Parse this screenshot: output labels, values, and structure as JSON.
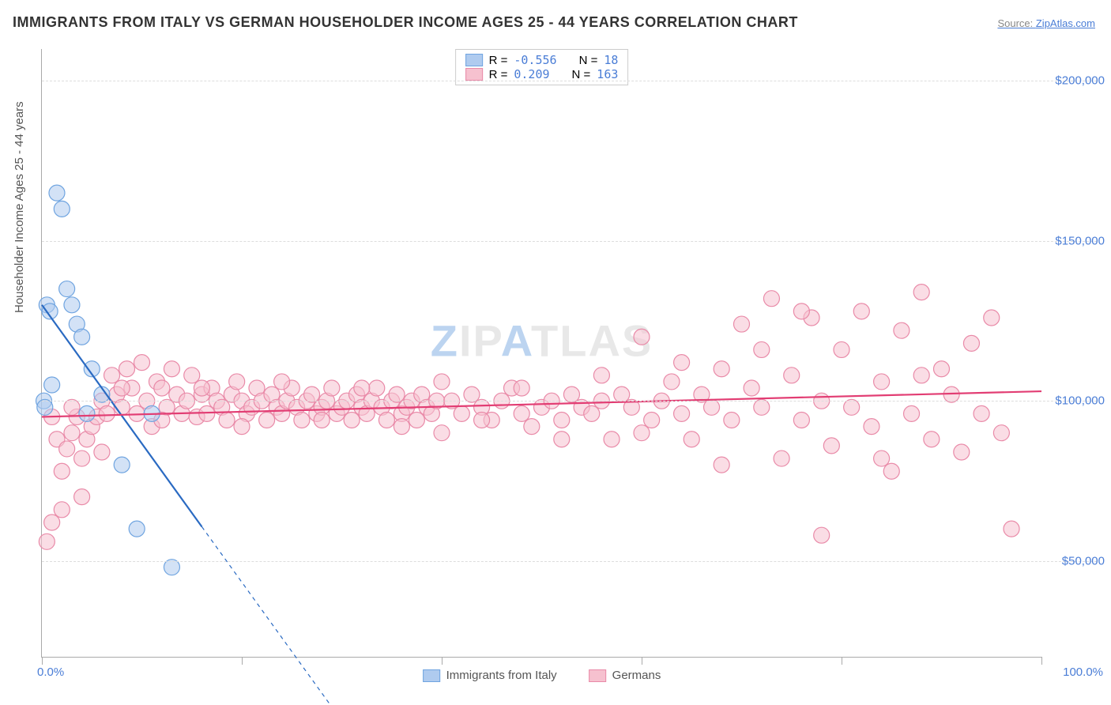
{
  "title": "IMMIGRANTS FROM ITALY VS GERMAN HOUSEHOLDER INCOME AGES 25 - 44 YEARS CORRELATION CHART",
  "source_label": "Source: ",
  "source": "ZipAtlas.com",
  "ylabel": "Householder Income Ages 25 - 44 years",
  "watermark": "ZIPATLAS",
  "chart": {
    "type": "scatter",
    "xlim": [
      0,
      100
    ],
    "ylim": [
      20000,
      210000
    ],
    "ytick_values": [
      50000,
      100000,
      150000,
      200000
    ],
    "ytick_labels": [
      "$50,000",
      "$100,000",
      "$150,000",
      "$200,000"
    ],
    "xtick_values": [
      0,
      20,
      40,
      60,
      80,
      100
    ],
    "x_corner_labels": [
      "0.0%",
      "100.0%"
    ],
    "grid_color": "#dddddd",
    "axis_color": "#aaaaaa",
    "background_color": "#ffffff"
  },
  "series": [
    {
      "name": "Immigrants from Italy",
      "fill": "#afcbef",
      "stroke": "#6fa4e0",
      "line_color": "#2a6ac2",
      "fill_opacity": 0.55,
      "marker_r": 10,
      "R_label": "R = ",
      "R": "-0.556",
      "N_label": "N = ",
      "N": "18",
      "trend": {
        "x1": 0,
        "y1": 130000,
        "x2": 30,
        "y2": 0,
        "solid_until_x": 16
      },
      "points": [
        [
          0.2,
          100000
        ],
        [
          0.3,
          98000
        ],
        [
          0.5,
          130000
        ],
        [
          0.8,
          128000
        ],
        [
          1.0,
          105000
        ],
        [
          1.5,
          165000
        ],
        [
          2.0,
          160000
        ],
        [
          2.5,
          135000
        ],
        [
          3.0,
          130000
        ],
        [
          3.5,
          124000
        ],
        [
          4.0,
          120000
        ],
        [
          4.5,
          96000
        ],
        [
          5.0,
          110000
        ],
        [
          6.0,
          102000
        ],
        [
          8.0,
          80000
        ],
        [
          9.5,
          60000
        ],
        [
          11.0,
          96000
        ],
        [
          13.0,
          48000
        ]
      ]
    },
    {
      "name": "Germans",
      "fill": "#f6c1cf",
      "stroke": "#e98aa8",
      "line_color": "#e23d73",
      "fill_opacity": 0.55,
      "marker_r": 10,
      "R_label": "R = ",
      "R": "0.209",
      "N_label": "N = ",
      "N": "163",
      "trend": {
        "x1": 0,
        "y1": 95000,
        "x2": 100,
        "y2": 103000,
        "solid_until_x": 100
      },
      "points": [
        [
          0.5,
          56000
        ],
        [
          1,
          62000
        ],
        [
          1.5,
          88000
        ],
        [
          2,
          78000
        ],
        [
          2.5,
          85000
        ],
        [
          3,
          90000
        ],
        [
          3.5,
          95000
        ],
        [
          4,
          82000
        ],
        [
          4.5,
          88000
        ],
        [
          5,
          92000
        ],
        [
          5.5,
          95000
        ],
        [
          6,
          100000
        ],
        [
          6.5,
          96000
        ],
        [
          7,
          108000
        ],
        [
          7.5,
          102000
        ],
        [
          8,
          98000
        ],
        [
          8.5,
          110000
        ],
        [
          9,
          104000
        ],
        [
          9.5,
          96000
        ],
        [
          10,
          112000
        ],
        [
          10.5,
          100000
        ],
        [
          11,
          92000
        ],
        [
          11.5,
          106000
        ],
        [
          12,
          104000
        ],
        [
          12.5,
          98000
        ],
        [
          13,
          110000
        ],
        [
          13.5,
          102000
        ],
        [
          14,
          96000
        ],
        [
          14.5,
          100000
        ],
        [
          15,
          108000
        ],
        [
          15.5,
          95000
        ],
        [
          16,
          102000
        ],
        [
          16.5,
          96000
        ],
        [
          17,
          104000
        ],
        [
          17.5,
          100000
        ],
        [
          18,
          98000
        ],
        [
          18.5,
          94000
        ],
        [
          19,
          102000
        ],
        [
          19.5,
          106000
        ],
        [
          20,
          100000
        ],
        [
          20.5,
          96000
        ],
        [
          21,
          98000
        ],
        [
          21.5,
          104000
        ],
        [
          22,
          100000
        ],
        [
          22.5,
          94000
        ],
        [
          23,
          102000
        ],
        [
          23.5,
          98000
        ],
        [
          24,
          96000
        ],
        [
          24.5,
          100000
        ],
        [
          25,
          104000
        ],
        [
          25.5,
          98000
        ],
        [
          26,
          94000
        ],
        [
          26.5,
          100000
        ],
        [
          27,
          102000
        ],
        [
          27.5,
          96000
        ],
        [
          28,
          98000
        ],
        [
          28.5,
          100000
        ],
        [
          29,
          104000
        ],
        [
          29.5,
          96000
        ],
        [
          30,
          98000
        ],
        [
          30.5,
          100000
        ],
        [
          31,
          94000
        ],
        [
          31.5,
          102000
        ],
        [
          32,
          98000
        ],
        [
          32.5,
          96000
        ],
        [
          33,
          100000
        ],
        [
          33.5,
          104000
        ],
        [
          34,
          98000
        ],
        [
          34.5,
          94000
        ],
        [
          35,
          100000
        ],
        [
          35.5,
          102000
        ],
        [
          36,
          96000
        ],
        [
          36.5,
          98000
        ],
        [
          37,
          100000
        ],
        [
          37.5,
          94000
        ],
        [
          38,
          102000
        ],
        [
          38.5,
          98000
        ],
        [
          39,
          96000
        ],
        [
          39.5,
          100000
        ],
        [
          40,
          90000
        ],
        [
          41,
          100000
        ],
        [
          42,
          96000
        ],
        [
          43,
          102000
        ],
        [
          44,
          98000
        ],
        [
          45,
          94000
        ],
        [
          46,
          100000
        ],
        [
          47,
          104000
        ],
        [
          48,
          96000
        ],
        [
          49,
          92000
        ],
        [
          50,
          98000
        ],
        [
          51,
          100000
        ],
        [
          52,
          94000
        ],
        [
          53,
          102000
        ],
        [
          54,
          98000
        ],
        [
          55,
          96000
        ],
        [
          56,
          100000
        ],
        [
          57,
          88000
        ],
        [
          58,
          102000
        ],
        [
          59,
          98000
        ],
        [
          60,
          120000
        ],
        [
          61,
          94000
        ],
        [
          62,
          100000
        ],
        [
          63,
          106000
        ],
        [
          64,
          96000
        ],
        [
          65,
          88000
        ],
        [
          66,
          102000
        ],
        [
          67,
          98000
        ],
        [
          68,
          110000
        ],
        [
          69,
          94000
        ],
        [
          70,
          124000
        ],
        [
          71,
          104000
        ],
        [
          72,
          98000
        ],
        [
          73,
          132000
        ],
        [
          74,
          82000
        ],
        [
          75,
          108000
        ],
        [
          76,
          94000
        ],
        [
          77,
          126000
        ],
        [
          78,
          100000
        ],
        [
          79,
          86000
        ],
        [
          80,
          116000
        ],
        [
          81,
          98000
        ],
        [
          82,
          128000
        ],
        [
          83,
          92000
        ],
        [
          84,
          106000
        ],
        [
          85,
          78000
        ],
        [
          86,
          122000
        ],
        [
          87,
          96000
        ],
        [
          88,
          134000
        ],
        [
          89,
          88000
        ],
        [
          90,
          110000
        ],
        [
          91,
          102000
        ],
        [
          92,
          84000
        ],
        [
          93,
          118000
        ],
        [
          94,
          96000
        ],
        [
          95,
          126000
        ],
        [
          96,
          90000
        ],
        [
          97,
          60000
        ],
        [
          78,
          58000
        ],
        [
          84,
          82000
        ],
        [
          88,
          108000
        ],
        [
          72,
          116000
        ],
        [
          76,
          128000
        ],
        [
          68,
          80000
        ],
        [
          64,
          112000
        ],
        [
          60,
          90000
        ],
        [
          56,
          108000
        ],
        [
          52,
          88000
        ],
        [
          48,
          104000
        ],
        [
          44,
          94000
        ],
        [
          40,
          106000
        ],
        [
          36,
          92000
        ],
        [
          32,
          104000
        ],
        [
          28,
          94000
        ],
        [
          24,
          106000
        ],
        [
          20,
          92000
        ],
        [
          16,
          104000
        ],
        [
          12,
          94000
        ],
        [
          8,
          104000
        ],
        [
          4,
          70000
        ],
        [
          2,
          66000
        ],
        [
          1,
          95000
        ],
        [
          3,
          98000
        ],
        [
          6,
          84000
        ]
      ]
    }
  ],
  "legend_bottom": [
    {
      "label": "Immigrants from Italy",
      "fill": "#afcbef",
      "stroke": "#6fa4e0"
    },
    {
      "label": "Germans",
      "fill": "#f6c1cf",
      "stroke": "#e98aa8"
    }
  ]
}
